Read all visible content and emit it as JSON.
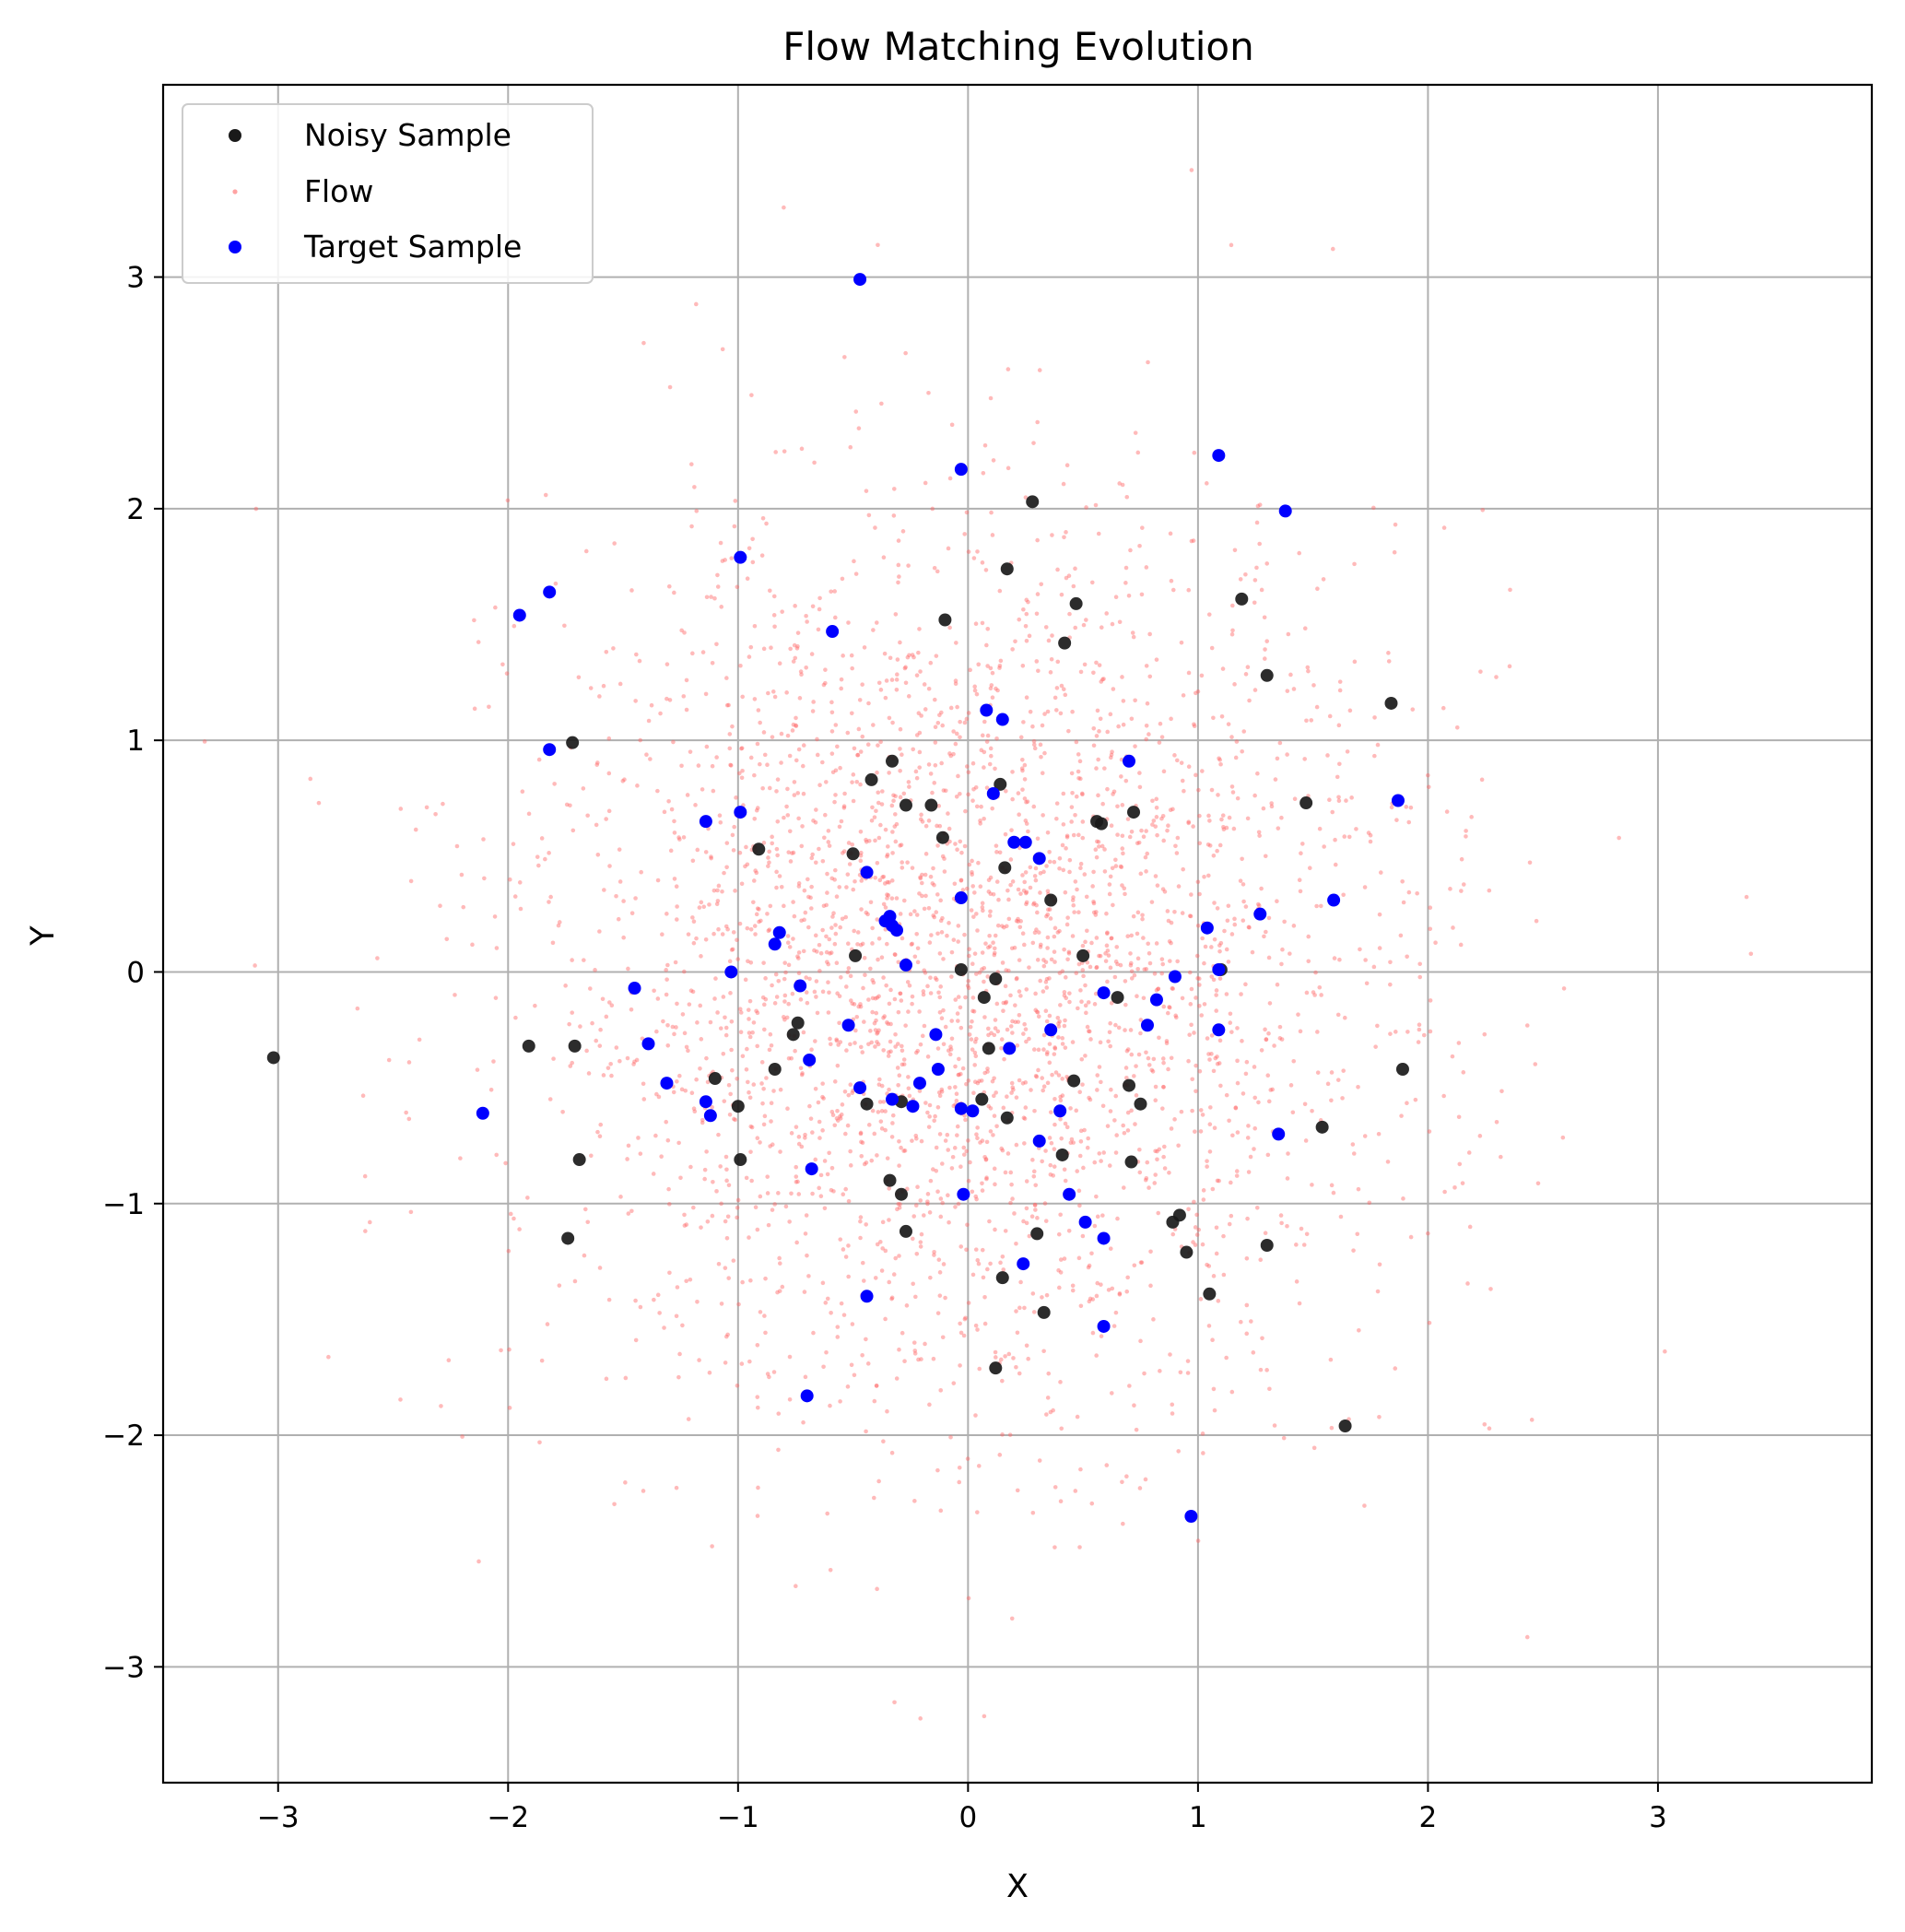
{
  "chart_data": {
    "type": "scatter",
    "title": "Flow Matching Evolution",
    "xlabel": "X",
    "ylabel": "Y",
    "xlim": [
      -3.5,
      3.93
    ],
    "ylim": [
      -3.5,
      3.83
    ],
    "xticks": [
      -3,
      -2,
      -1,
      0,
      1,
      2,
      3
    ],
    "yticks": [
      -3,
      -2,
      -1,
      0,
      1,
      2,
      3
    ],
    "xtick_labels": [
      "−3",
      "−2",
      "−1",
      "0",
      "1",
      "2",
      "3"
    ],
    "ytick_labels": [
      "−3",
      "−2",
      "−1",
      "0",
      "1",
      "2",
      "3"
    ],
    "grid": true,
    "legend_position": "top-left",
    "colors": {
      "noisy": "#1a1a1a",
      "flow": "#ff6666",
      "target": "#0000ff",
      "grid": "#b0b0b0"
    },
    "series": [
      {
        "name": "Noisy Sample",
        "marker": "circle",
        "points": [
          [
            -3.02,
            -0.37
          ],
          [
            -1.91,
            -0.32
          ],
          [
            -1.72,
            0.99
          ],
          [
            -1.71,
            -0.32
          ],
          [
            -1.69,
            -0.81
          ],
          [
            -1.74,
            -1.15
          ],
          [
            -1.1,
            -0.46
          ],
          [
            -1.0,
            -0.58
          ],
          [
            -0.99,
            -0.81
          ],
          [
            -0.91,
            0.53
          ],
          [
            -0.84,
            -0.42
          ],
          [
            -0.76,
            -0.27
          ],
          [
            -0.74,
            -0.22
          ],
          [
            -0.5,
            0.51
          ],
          [
            -0.49,
            0.07
          ],
          [
            -0.44,
            -0.57
          ],
          [
            -0.42,
            0.83
          ],
          [
            -0.34,
            -0.9
          ],
          [
            -0.33,
            0.91
          ],
          [
            -0.29,
            -0.96
          ],
          [
            -0.29,
            -0.56
          ],
          [
            -0.27,
            0.72
          ],
          [
            -0.27,
            -1.12
          ],
          [
            -0.16,
            0.72
          ],
          [
            -0.11,
            0.58
          ],
          [
            -0.1,
            1.52
          ],
          [
            -0.03,
            0.01
          ],
          [
            0.06,
            -0.55
          ],
          [
            0.07,
            -0.11
          ],
          [
            0.09,
            -0.33
          ],
          [
            0.12,
            -0.03
          ],
          [
            0.12,
            -1.71
          ],
          [
            0.14,
            0.81
          ],
          [
            0.15,
            -1.32
          ],
          [
            0.16,
            0.45
          ],
          [
            0.17,
            -0.63
          ],
          [
            0.17,
            1.74
          ],
          [
            0.28,
            2.03
          ],
          [
            0.3,
            -1.13
          ],
          [
            0.33,
            -1.47
          ],
          [
            0.36,
            0.31
          ],
          [
            0.41,
            -0.79
          ],
          [
            0.42,
            1.42
          ],
          [
            0.46,
            -0.47
          ],
          [
            0.47,
            1.59
          ],
          [
            0.5,
            0.07
          ],
          [
            0.56,
            0.65
          ],
          [
            0.58,
            0.64
          ],
          [
            0.65,
            -0.11
          ],
          [
            0.7,
            -0.49
          ],
          [
            0.71,
            -0.82
          ],
          [
            0.72,
            0.69
          ],
          [
            0.75,
            -0.57
          ],
          [
            0.89,
            -1.08
          ],
          [
            0.92,
            -1.05
          ],
          [
            0.95,
            -1.21
          ],
          [
            1.05,
            -1.39
          ],
          [
            1.1,
            0.01
          ],
          [
            1.19,
            1.61
          ],
          [
            1.3,
            1.28
          ],
          [
            1.3,
            -1.18
          ],
          [
            1.47,
            0.73
          ],
          [
            1.54,
            -0.67
          ],
          [
            1.64,
            -1.96
          ],
          [
            1.84,
            1.16
          ],
          [
            1.89,
            -0.42
          ]
        ]
      },
      {
        "name": "Flow",
        "marker": "dot",
        "count": 3200,
        "distribution": "gaussian",
        "mean": [
          0,
          0
        ],
        "std": [
          0.95,
          0.95
        ],
        "seed": 7
      },
      {
        "name": "Target Sample",
        "marker": "circle",
        "points": [
          [
            -2.11,
            -0.61
          ],
          [
            -1.95,
            1.54
          ],
          [
            -1.82,
            1.64
          ],
          [
            -1.82,
            0.96
          ],
          [
            -1.45,
            -0.07
          ],
          [
            -1.39,
            -0.31
          ],
          [
            -1.31,
            -0.48
          ],
          [
            -1.14,
            0.65
          ],
          [
            -1.14,
            -0.56
          ],
          [
            -1.12,
            -0.62
          ],
          [
            -1.03,
            0.0
          ],
          [
            -0.99,
            1.79
          ],
          [
            -0.99,
            0.69
          ],
          [
            -0.84,
            0.12
          ],
          [
            -0.82,
            0.17
          ],
          [
            -0.73,
            -0.06
          ],
          [
            -0.69,
            -0.38
          ],
          [
            -0.68,
            -0.85
          ],
          [
            -0.7,
            -1.83
          ],
          [
            -0.59,
            1.47
          ],
          [
            -0.52,
            -0.23
          ],
          [
            -0.47,
            2.99
          ],
          [
            -0.47,
            -0.5
          ],
          [
            -0.44,
            0.43
          ],
          [
            -0.44,
            -1.4
          ],
          [
            -0.36,
            0.22
          ],
          [
            -0.34,
            0.24
          ],
          [
            -0.33,
            0.2
          ],
          [
            -0.33,
            -0.55
          ],
          [
            -0.31,
            0.18
          ],
          [
            -0.27,
            0.03
          ],
          [
            -0.24,
            -0.58
          ],
          [
            -0.21,
            -0.48
          ],
          [
            -0.14,
            -0.27
          ],
          [
            -0.13,
            -0.42
          ],
          [
            -0.03,
            2.17
          ],
          [
            -0.03,
            0.32
          ],
          [
            -0.03,
            -0.59
          ],
          [
            -0.02,
            -0.96
          ],
          [
            0.02,
            -0.6
          ],
          [
            0.08,
            1.13
          ],
          [
            0.11,
            0.77
          ],
          [
            0.15,
            1.09
          ],
          [
            0.18,
            -0.33
          ],
          [
            0.2,
            0.56
          ],
          [
            0.24,
            -1.26
          ],
          [
            0.25,
            0.56
          ],
          [
            0.31,
            0.49
          ],
          [
            0.31,
            -0.73
          ],
          [
            0.36,
            -0.25
          ],
          [
            0.4,
            -0.6
          ],
          [
            0.44,
            -0.96
          ],
          [
            0.51,
            -1.08
          ],
          [
            0.59,
            -0.09
          ],
          [
            0.59,
            -1.15
          ],
          [
            0.59,
            -1.53
          ],
          [
            0.7,
            0.91
          ],
          [
            0.78,
            -0.23
          ],
          [
            0.82,
            -0.12
          ],
          [
            0.9,
            -0.02
          ],
          [
            0.97,
            -2.35
          ],
          [
            1.04,
            0.19
          ],
          [
            1.09,
            2.23
          ],
          [
            1.09,
            0.01
          ],
          [
            1.09,
            -0.25
          ],
          [
            1.27,
            0.25
          ],
          [
            1.35,
            -0.7
          ],
          [
            1.38,
            1.99
          ],
          [
            1.59,
            0.31
          ],
          [
            1.87,
            0.74
          ]
        ]
      }
    ]
  }
}
